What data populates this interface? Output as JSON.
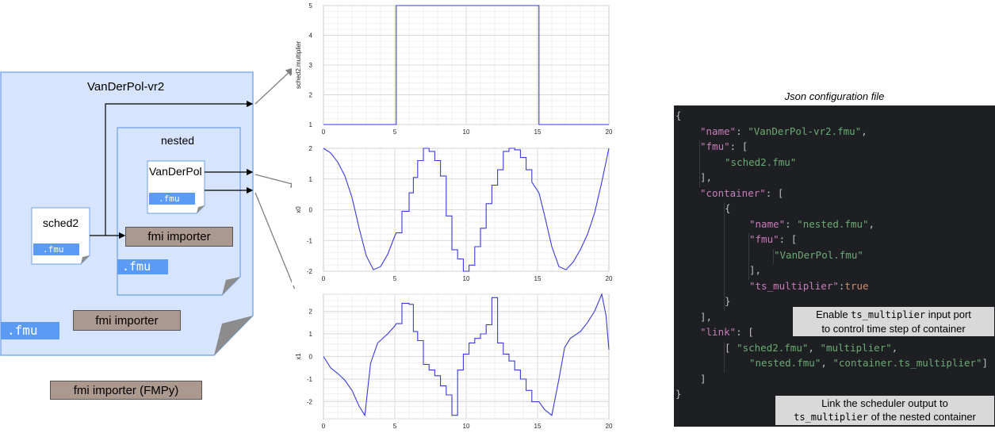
{
  "diagram": {
    "outer_fmu": {
      "name": "VanDerPol-vr2",
      "tag": ".fmu",
      "importer": "fmi importer"
    },
    "nested_fmu": {
      "name": "nested",
      "tag": ".fmu",
      "importer": "fmi importer"
    },
    "sched_fmu": {
      "name": "sched2",
      "tag": ".fmu"
    },
    "vdp_fmu": {
      "name": "VanDerPol",
      "tag": ".fmu"
    },
    "host_importer": "fmi importer (FMPy)"
  },
  "colors": {
    "fmu_fill": "#d6e4fd",
    "fmu_border": "#6fa1e9",
    "tag_blue": "#5b9bf5",
    "importer_fill": "#ab988e",
    "trace": "#3a3ae0",
    "json_bg": "#1e1f22"
  },
  "chart_data": [
    {
      "type": "line",
      "ylabel": "sched2.multiplier",
      "xlim": [
        0,
        20
      ],
      "ylim": [
        1,
        5
      ],
      "xticks": [
        "0",
        "5",
        "10",
        "15",
        "20"
      ],
      "yticks": [
        "1",
        "2",
        "3",
        "4",
        "5"
      ],
      "series": [
        {
          "x": [
            0,
            5.1,
            5.1,
            15.1,
            15.1,
            20
          ],
          "y": [
            1,
            1,
            5,
            5,
            1,
            1
          ]
        }
      ]
    },
    {
      "type": "line",
      "ylabel": "x0",
      "xlim": [
        0,
        20
      ],
      "ylim": [
        -2,
        2
      ],
      "xticks": [
        "0",
        "5",
        "10",
        "15",
        "20"
      ],
      "yticks": [
        "-2",
        "-1",
        "0",
        "1",
        "2"
      ],
      "series": [
        {
          "x": [
            0,
            0.5,
            1,
            1.5,
            2,
            2.5,
            3,
            3.5,
            4,
            4.5,
            5,
            5.1,
            5.5,
            5.5,
            6,
            6,
            6.3,
            6.3,
            6.6,
            6.6,
            7,
            7,
            7.4,
            7.4,
            7.8,
            7.8,
            8.2,
            8.2,
            8.6,
            8.6,
            9,
            9,
            9.4,
            9.4,
            9.8,
            9.8,
            10.2,
            10.2,
            10.6,
            10.6,
            11,
            11,
            11.4,
            11.4,
            11.8,
            11.8,
            12.2,
            12.2,
            12.6,
            12.6,
            13,
            13,
            13.4,
            13.4,
            13.8,
            13.8,
            14.2,
            14.2,
            14.6,
            14.6,
            15.1,
            15.5,
            16,
            16.5,
            17,
            17.5,
            18,
            18.5,
            19,
            19.5,
            20
          ],
          "y": [
            2,
            1.85,
            1.55,
            1.1,
            0.4,
            -0.6,
            -1.5,
            -1.95,
            -1.85,
            -1.45,
            -0.85,
            -0.75,
            -0.75,
            -0.05,
            -0.05,
            0.55,
            0.55,
            1.05,
            1.05,
            1.6,
            1.6,
            2.0,
            2.0,
            1.9,
            1.9,
            1.6,
            1.6,
            1.1,
            1.1,
            -0.2,
            -0.2,
            -1.3,
            -1.3,
            -1.6,
            -1.6,
            -2.0,
            -2.0,
            -1.8,
            -1.8,
            -1.2,
            -1.2,
            -0.6,
            -0.6,
            0.2,
            0.2,
            0.8,
            0.8,
            1.3,
            1.3,
            1.9,
            1.9,
            2.0,
            2.0,
            1.95,
            1.95,
            1.7,
            1.7,
            1.3,
            1.3,
            0.9,
            0.55,
            -0.2,
            -1.2,
            -1.85,
            -1.95,
            -1.7,
            -1.3,
            -0.8,
            -0.1,
            0.9,
            2.0
          ]
        }
      ]
    },
    {
      "type": "line",
      "ylabel": "x1",
      "xlim": [
        0,
        20
      ],
      "ylim": [
        -2.75,
        2.75
      ],
      "xticks": [
        "0",
        "5",
        "10",
        "15",
        "20"
      ],
      "yticks": [
        "-2",
        "-1",
        "0",
        "1",
        "2"
      ],
      "series": [
        {
          "x": [
            0,
            0.5,
            1,
            1.5,
            2,
            2.5,
            2.9,
            3.3,
            3.8,
            4.5,
            5,
            5.1,
            5.5,
            5.5,
            6,
            6,
            6.3,
            6.3,
            6.6,
            6.6,
            7,
            7,
            7.4,
            7.4,
            7.8,
            7.8,
            8.2,
            8.2,
            8.6,
            8.6,
            9,
            9,
            9.4,
            9.4,
            9.8,
            9.8,
            10.2,
            10.2,
            10.6,
            10.6,
            11,
            11,
            11.4,
            11.4,
            11.8,
            11.8,
            12.2,
            12.2,
            12.6,
            12.6,
            13,
            13,
            13.4,
            13.4,
            13.8,
            13.8,
            14.2,
            14.2,
            14.6,
            14.6,
            15.1,
            15.5,
            16,
            16.5,
            16.9,
            17.3,
            18,
            18.5,
            19,
            19.5,
            19.8,
            20
          ],
          "y": [
            0,
            -0.5,
            -0.75,
            -1.05,
            -1.5,
            -2.2,
            -2.6,
            -0.3,
            0.6,
            1.0,
            1.35,
            1.45,
            1.45,
            2.35,
            2.35,
            2.3,
            2.3,
            1.1,
            1.1,
            0.7,
            0.7,
            -0.35,
            -0.35,
            -0.6,
            -0.6,
            -0.85,
            -0.85,
            -1.3,
            -1.3,
            -1.7,
            -1.7,
            -2.6,
            -2.6,
            -0.6,
            -0.6,
            0.1,
            0.1,
            0.6,
            0.6,
            0.8,
            0.8,
            1.0,
            1.0,
            1.4,
            1.4,
            2.6,
            2.6,
            0.6,
            0.6,
            0.1,
            0.1,
            -0.2,
            -0.2,
            -0.6,
            -0.6,
            -1.0,
            -1.0,
            -1.5,
            -1.5,
            -2.0,
            -2.0,
            -2.35,
            -2.6,
            -1.0,
            0.4,
            0.8,
            1.1,
            1.5,
            2.0,
            2.75,
            1.8,
            0.3
          ]
        }
      ]
    }
  ],
  "json_panel": {
    "title": "Json configuration file",
    "lines": [
      {
        "indent": 0,
        "parts": [
          [
            "p",
            "{"
          ]
        ]
      },
      {
        "indent": 1,
        "parts": [
          [
            "k",
            "\"name\""
          ],
          [
            "p",
            ": "
          ],
          [
            "s",
            "\"VanDerPol-vr2.fmu\""
          ],
          [
            "p",
            ","
          ]
        ]
      },
      {
        "indent": 1,
        "parts": [
          [
            "k",
            "\"fmu\""
          ],
          [
            "p",
            ": ["
          ]
        ]
      },
      {
        "indent": 2,
        "parts": [
          [
            "s",
            "\"sched2.fmu\""
          ]
        ]
      },
      {
        "indent": 1,
        "parts": [
          [
            "p",
            "],"
          ]
        ]
      },
      {
        "indent": 1,
        "parts": [
          [
            "k",
            "\"container\""
          ],
          [
            "p",
            ": ["
          ]
        ]
      },
      {
        "indent": 2,
        "parts": [
          [
            "p",
            "{"
          ]
        ]
      },
      {
        "indent": 3,
        "parts": [
          [
            "k",
            "\"name\""
          ],
          [
            "p",
            ": "
          ],
          [
            "s",
            "\"nested.fmu\""
          ],
          [
            "p",
            ","
          ]
        ]
      },
      {
        "indent": 3,
        "parts": [
          [
            "k",
            "\"fmu\""
          ],
          [
            "p",
            ": ["
          ]
        ]
      },
      {
        "indent": 4,
        "parts": [
          [
            "s",
            "\"VanDerPol.fmu\""
          ]
        ]
      },
      {
        "indent": 3,
        "parts": [
          [
            "p",
            "],"
          ]
        ]
      },
      {
        "indent": 3,
        "parts": [
          [
            "k",
            "\"ts_multiplier\""
          ],
          [
            "p",
            ":"
          ],
          [
            "b",
            "true"
          ]
        ]
      },
      {
        "indent": 2,
        "parts": [
          [
            "p",
            "}"
          ]
        ]
      },
      {
        "indent": 1,
        "parts": [
          [
            "p",
            "],"
          ]
        ]
      },
      {
        "indent": 1,
        "parts": [
          [
            "k",
            "\"link\""
          ],
          [
            "p",
            ": ["
          ]
        ]
      },
      {
        "indent": 2,
        "parts": [
          [
            "p",
            "[ "
          ],
          [
            "s",
            "\"sched2.fmu\""
          ],
          [
            "p",
            ", "
          ],
          [
            "s",
            "\"multiplier\""
          ],
          [
            "p",
            ","
          ]
        ]
      },
      {
        "indent": 3,
        "parts": [
          [
            "s",
            "\"nested.fmu\""
          ],
          [
            "p",
            ", "
          ],
          [
            "s",
            "\"container.ts_multiplier\""
          ],
          [
            "p",
            "]"
          ]
        ]
      },
      {
        "indent": 1,
        "parts": [
          [
            "p",
            "]"
          ]
        ]
      },
      {
        "indent": 0,
        "parts": [
          [
            "p",
            "}"
          ]
        ]
      }
    ],
    "callout_ts": {
      "line1_pre": "Enable ",
      "line1_code": "ts_multiplier",
      "line1_post": " input port",
      "line2": "to control time step of container"
    },
    "callout_link": {
      "line1": "Link the scheduler output to",
      "line2_code": "ts_multiplier",
      "line2_post": " of the nested container"
    }
  }
}
